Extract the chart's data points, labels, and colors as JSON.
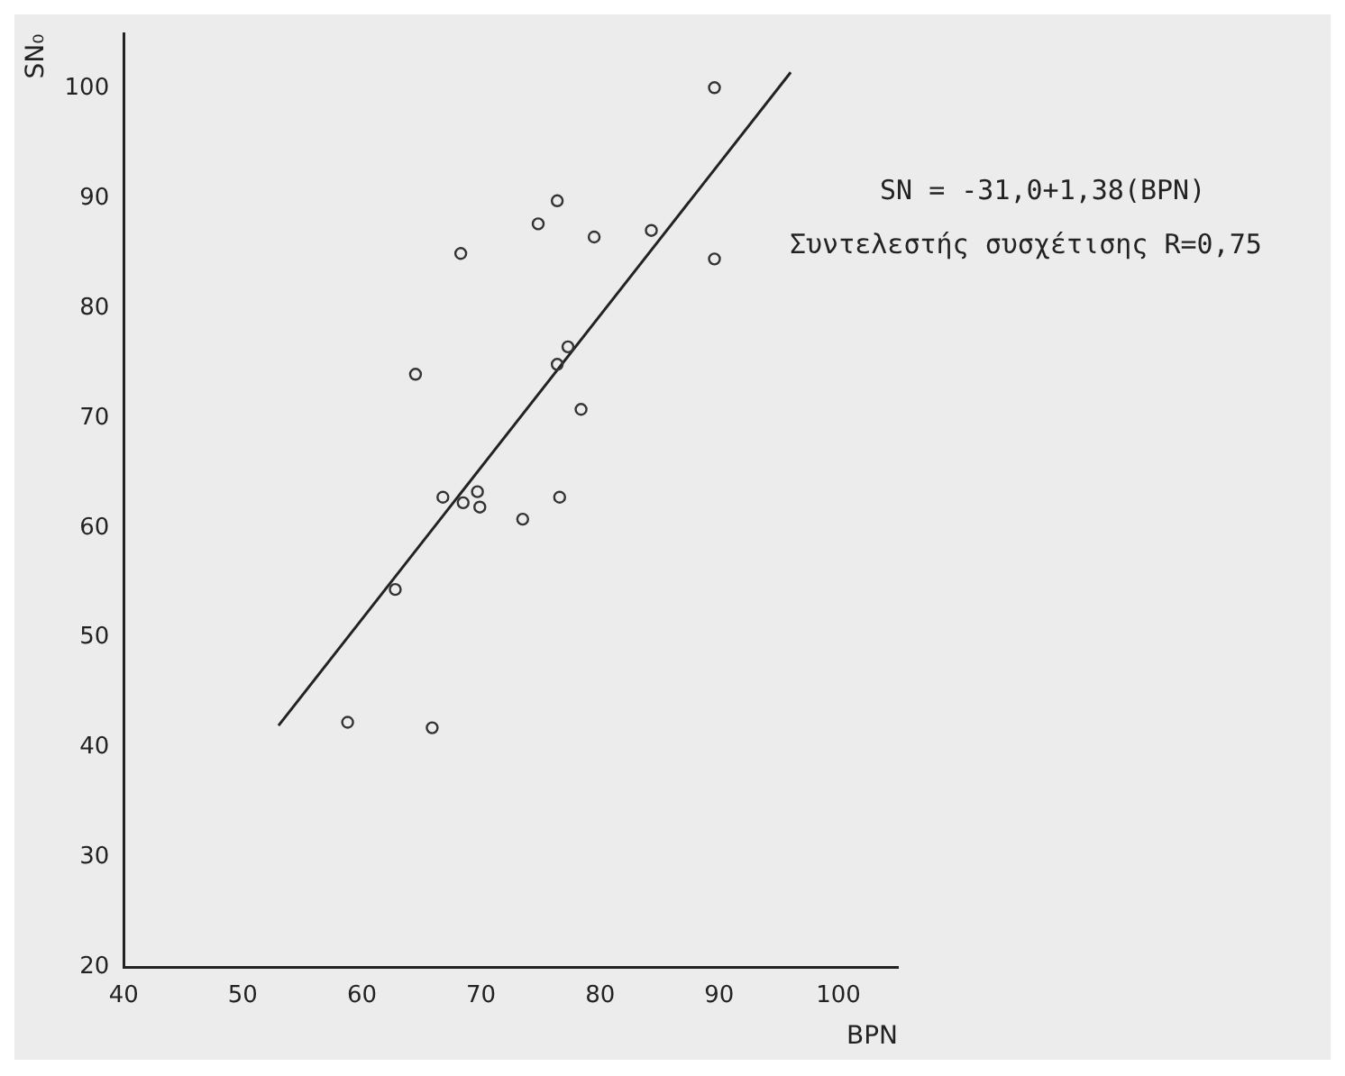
{
  "chart_data": {
    "type": "scatter",
    "xlabel": "BPN",
    "ylabel": "SN₀",
    "xlim": [
      40,
      105
    ],
    "ylim": [
      20,
      105
    ],
    "xticks": [
      40,
      50,
      60,
      70,
      80,
      90,
      100
    ],
    "yticks": [
      20,
      30,
      40,
      50,
      60,
      70,
      80,
      90,
      100
    ],
    "grid": false,
    "legend": false,
    "marker": "circle",
    "annotations": [
      "SN = -31,0+1,38(BPN)",
      "Συντελεστής συσχέτισης R=0,75"
    ],
    "series": [
      {
        "color": "#333333",
        "x": [
          64.5,
          68.3,
          74.8,
          76.4,
          79.5,
          84.3,
          76.4,
          77.3,
          78.4,
          66.8,
          68.5,
          69.7,
          69.9,
          73.5,
          76.6,
          62.8,
          58.8,
          65.9,
          89.6,
          89.6
        ],
        "values": [
          74.0,
          85.0,
          87.7,
          89.8,
          86.5,
          87.1,
          74.9,
          76.5,
          70.8,
          62.8,
          62.3,
          63.3,
          61.9,
          60.8,
          62.8,
          54.4,
          42.3,
          41.8,
          100.1,
          84.5
        ]
      },
      {
        "type": "line",
        "color": "#222222",
        "marker": "none",
        "x": [
          53,
          96
        ],
        "values": [
          42,
          101.5
        ]
      }
    ]
  }
}
